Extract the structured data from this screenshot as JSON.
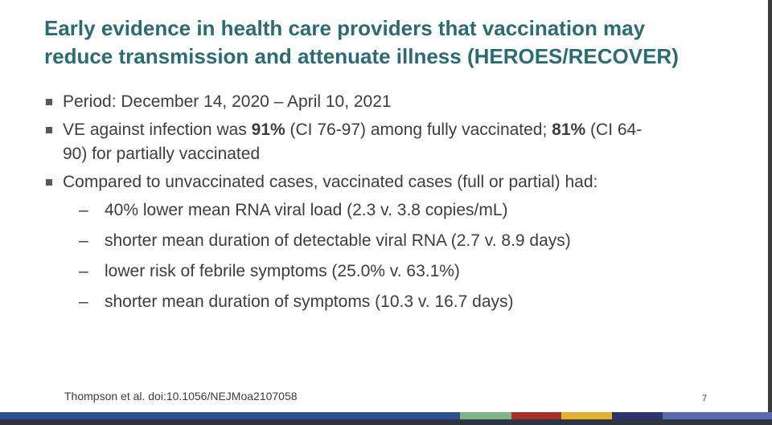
{
  "title": {
    "line1": "Early evidence in health care providers that vaccination may",
    "line2": "reduce transmission and attenuate illness (HEROES/RECOVER)"
  },
  "bullets": {
    "period": "Period: December 14, 2020 – April 10, 2021",
    "ve": {
      "t1": "VE against infection was ",
      "b1": "91%",
      "t2": " (CI 76-97) among fully vaccinated; ",
      "b2": "81%",
      "t3": " (CI 64-",
      "line2": "90) for partially vaccinated"
    },
    "compared": "Compared to unvaccinated cases, vaccinated cases (full or partial) had:",
    "sub_items": [
      "40% lower mean RNA viral load (2.3 v. 3.8 copies/mL)",
      "shorter mean duration of detectable viral RNA (2.7 v. 8.9 days)",
      "lower risk of febrile symptoms (25.0% v. 63.1%)",
      "shorter mean duration of symptoms (10.3 v. 16.7 days)"
    ],
    "dash": "–"
  },
  "citation": "Thompson et al. doi:10.1056/NEJMoa2107058",
  "page_number": "7",
  "colors": {
    "title": "#2b6b73",
    "body_text": "#3d3d3d",
    "footer_segments": [
      "#2f4f8f",
      "#7fb58a",
      "#a8302b",
      "#e0b230",
      "#2e3470",
      "#5a6ab0"
    ]
  }
}
